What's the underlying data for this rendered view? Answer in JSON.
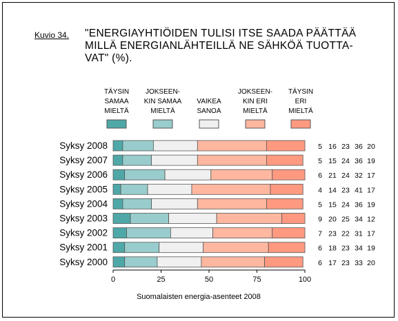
{
  "figure": {
    "label": "Kuvio 34.",
    "title": "\"ENERGIAYHTIÖIDEN TULISI ITSE SAADA PÄÄTTÄÄ MILLÄ ENERGIANLÄHTEILLÄ NE SÄHKÖÄ TUOTTA-VAT\" (%)."
  },
  "colors": {
    "border": "#000000",
    "bar_stroke": "#555555"
  },
  "chart_data": {
    "type": "bar",
    "orientation": "horizontal",
    "stacked": true,
    "title": "\"ENERGIAYHTIÖIDEN TULISI ITSE SAADA PÄÄTTÄÄ MILLÄ ENERGIANLÄHTEILLÄ NE SÄHKÖÄ TUOTTA-VAT\" (%).",
    "xlabel": "Suomalaisten energia-asenteet 2008",
    "ylabel": "",
    "xlim": [
      0,
      100
    ],
    "xticks": [
      0,
      25,
      50,
      75,
      100
    ],
    "grid": false,
    "legend_position": "top",
    "categories": [
      "Syksy 2008",
      "Syksy 2007",
      "Syksy 2006",
      "Syksy 2005",
      "Syksy 2004",
      "Syksy 2003",
      "Syksy 2002",
      "Syksy 2001",
      "Syksy 2000"
    ],
    "series": [
      {
        "name": "TÄYSIN SAMAA MIELTÄ",
        "legend_lines": [
          "TÄYSIN",
          "SAMAA",
          "MIELTÄ"
        ],
        "color": "#4fa8a8",
        "values": [
          5,
          5,
          6,
          4,
          5,
          9,
          7,
          6,
          6
        ]
      },
      {
        "name": "JOKSEENKIN SAMAA MIELTÄ",
        "legend_lines": [
          "JOKSEEN-",
          "KIN SAMAA",
          "MIELTÄ"
        ],
        "color": "#99cccc",
        "values": [
          16,
          15,
          21,
          14,
          15,
          20,
          23,
          18,
          17
        ]
      },
      {
        "name": "VAIKEA SANOA",
        "legend_lines": [
          "VAIKEA",
          "SANOA"
        ],
        "color": "#f0f0f0",
        "values": [
          23,
          24,
          24,
          23,
          24,
          25,
          22,
          23,
          23
        ]
      },
      {
        "name": "JOKSEENKIN ERI MIELTÄ",
        "legend_lines": [
          "JOKSEEN-",
          "KIN ERI",
          "MIELTÄ"
        ],
        "color": "#ffb7a0",
        "values": [
          36,
          36,
          32,
          41,
          36,
          34,
          31,
          34,
          33
        ]
      },
      {
        "name": "TÄYSIN ERI MIELTÄ",
        "legend_lines": [
          "TÄYSIN",
          "ERI",
          "MIELTÄ"
        ],
        "color": "#ff9a80",
        "values": [
          20,
          19,
          17,
          17,
          19,
          12,
          17,
          19,
          20
        ]
      }
    ]
  }
}
